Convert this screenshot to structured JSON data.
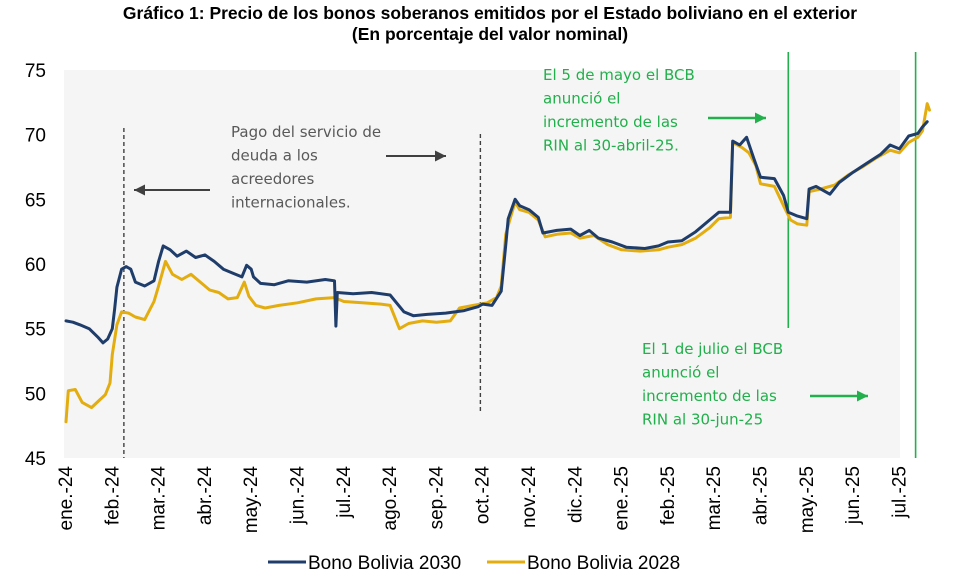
{
  "chart_data": {
    "type": "line",
    "title": "Gráfico 1: Precio de los bonos soberanos emitidos por el Estado boliviano en el exterior",
    "subtitle": "(En porcentaje del valor nominal)",
    "xlabel": "",
    "ylabel": "",
    "ylim": [
      45,
      75
    ],
    "yticks": [
      "45",
      "50",
      "55",
      "60",
      "65",
      "70",
      "75"
    ],
    "categories": [
      "ene.-24",
      "feb.-24",
      "mar.-24",
      "abr.-24",
      "may.-24",
      "jun.-24",
      "jul.-24",
      "ago.-24",
      "sep.-24",
      "oct.-24",
      "nov.-24",
      "dic.-24",
      "ene.-25",
      "feb.-25",
      "mar.-25",
      "abr.-25",
      "may.-25",
      "jun.-25",
      "jul.-25"
    ],
    "grid": false,
    "legend_position": "bottom",
    "series": [
      {
        "name": "Bono Bolivia 2030",
        "color": "#1f3d6b",
        "points": [
          [
            0,
            55.6
          ],
          [
            0.15,
            55.5
          ],
          [
            0.3,
            55.3
          ],
          [
            0.5,
            55.0
          ],
          [
            0.7,
            54.3
          ],
          [
            0.8,
            53.9
          ],
          [
            0.9,
            54.2
          ],
          [
            1.0,
            55.0
          ],
          [
            1.05,
            56.5
          ],
          [
            1.1,
            58.2
          ],
          [
            1.2,
            59.6
          ],
          [
            1.3,
            59.8
          ],
          [
            1.4,
            59.6
          ],
          [
            1.5,
            58.6
          ],
          [
            1.7,
            58.3
          ],
          [
            1.9,
            58.7
          ],
          [
            2.0,
            60.2
          ],
          [
            2.1,
            61.4
          ],
          [
            2.25,
            61.1
          ],
          [
            2.4,
            60.6
          ],
          [
            2.6,
            61.0
          ],
          [
            2.8,
            60.5
          ],
          [
            3.0,
            60.7
          ],
          [
            3.2,
            60.2
          ],
          [
            3.4,
            59.6
          ],
          [
            3.6,
            59.3
          ],
          [
            3.8,
            59.0
          ],
          [
            3.9,
            59.9
          ],
          [
            4.0,
            59.6
          ],
          [
            4.05,
            59.0
          ],
          [
            4.2,
            58.5
          ],
          [
            4.5,
            58.4
          ],
          [
            4.8,
            58.7
          ],
          [
            5.2,
            58.6
          ],
          [
            5.6,
            58.8
          ],
          [
            5.8,
            58.7
          ],
          [
            5.83,
            55.2
          ],
          [
            5.86,
            57.8
          ],
          [
            6.2,
            57.7
          ],
          [
            6.6,
            57.8
          ],
          [
            7.0,
            57.6
          ],
          [
            7.3,
            56.3
          ],
          [
            7.5,
            56.0
          ],
          [
            7.8,
            56.1
          ],
          [
            8.2,
            56.2
          ],
          [
            8.6,
            56.4
          ],
          [
            8.9,
            56.7
          ],
          [
            9.0,
            56.9
          ],
          [
            9.2,
            56.8
          ],
          [
            9.4,
            57.9
          ],
          [
            9.5,
            61.5
          ],
          [
            9.55,
            63.5
          ],
          [
            9.7,
            65.0
          ],
          [
            9.8,
            64.5
          ],
          [
            10.0,
            64.2
          ],
          [
            10.2,
            63.6
          ],
          [
            10.3,
            62.4
          ],
          [
            10.6,
            62.6
          ],
          [
            10.9,
            62.7
          ],
          [
            11.1,
            62.2
          ],
          [
            11.3,
            62.6
          ],
          [
            11.5,
            62.0
          ],
          [
            11.8,
            61.7
          ],
          [
            12.1,
            61.3
          ],
          [
            12.5,
            61.2
          ],
          [
            12.8,
            61.4
          ],
          [
            13.0,
            61.7
          ],
          [
            13.3,
            61.8
          ],
          [
            13.6,
            62.5
          ],
          [
            13.9,
            63.4
          ],
          [
            14.1,
            64.0
          ],
          [
            14.35,
            64.0
          ],
          [
            14.4,
            69.5
          ],
          [
            14.55,
            69.2
          ],
          [
            14.7,
            69.8
          ],
          [
            14.85,
            68.2
          ],
          [
            15.0,
            66.7
          ],
          [
            15.3,
            66.6
          ],
          [
            15.5,
            65.3
          ],
          [
            15.6,
            64.0
          ],
          [
            15.8,
            63.7
          ],
          [
            16.0,
            63.5
          ],
          [
            16.05,
            65.8
          ],
          [
            16.2,
            66.0
          ],
          [
            16.5,
            65.4
          ],
          [
            16.7,
            66.3
          ],
          [
            17.0,
            67.1
          ],
          [
            17.3,
            67.8
          ],
          [
            17.6,
            68.5
          ],
          [
            17.8,
            69.2
          ],
          [
            18.0,
            68.9
          ],
          [
            18.2,
            69.9
          ],
          [
            18.4,
            70.1
          ],
          [
            18.5,
            70.6
          ],
          [
            18.6,
            71.0
          ]
        ]
      },
      {
        "name": "Bono Bolivia 2028",
        "color": "#e3ad10",
        "points": [
          [
            0,
            47.8
          ],
          [
            0.05,
            50.2
          ],
          [
            0.2,
            50.3
          ],
          [
            0.35,
            49.3
          ],
          [
            0.55,
            48.9
          ],
          [
            0.7,
            49.4
          ],
          [
            0.85,
            49.9
          ],
          [
            0.95,
            50.8
          ],
          [
            1.0,
            53.0
          ],
          [
            1.1,
            55.3
          ],
          [
            1.2,
            56.3
          ],
          [
            1.35,
            56.2
          ],
          [
            1.5,
            55.9
          ],
          [
            1.7,
            55.7
          ],
          [
            1.9,
            57.1
          ],
          [
            2.0,
            58.3
          ],
          [
            2.15,
            60.2
          ],
          [
            2.3,
            59.2
          ],
          [
            2.5,
            58.8
          ],
          [
            2.7,
            59.2
          ],
          [
            2.9,
            58.6
          ],
          [
            3.1,
            58.0
          ],
          [
            3.3,
            57.8
          ],
          [
            3.5,
            57.3
          ],
          [
            3.7,
            57.4
          ],
          [
            3.85,
            58.6
          ],
          [
            3.95,
            57.5
          ],
          [
            4.1,
            56.8
          ],
          [
            4.3,
            56.6
          ],
          [
            4.6,
            56.8
          ],
          [
            5.0,
            57.0
          ],
          [
            5.4,
            57.3
          ],
          [
            5.8,
            57.4
          ],
          [
            6.0,
            57.1
          ],
          [
            6.4,
            57.0
          ],
          [
            6.8,
            56.9
          ],
          [
            7.0,
            56.8
          ],
          [
            7.2,
            55.0
          ],
          [
            7.4,
            55.4
          ],
          [
            7.7,
            55.6
          ],
          [
            8.0,
            55.5
          ],
          [
            8.3,
            55.6
          ],
          [
            8.5,
            56.6
          ],
          [
            8.8,
            56.8
          ],
          [
            9.1,
            57.0
          ],
          [
            9.3,
            57.4
          ],
          [
            9.4,
            58.3
          ],
          [
            9.5,
            62.3
          ],
          [
            9.6,
            63.6
          ],
          [
            9.7,
            64.8
          ],
          [
            9.8,
            64.2
          ],
          [
            10.0,
            64.0
          ],
          [
            10.2,
            63.4
          ],
          [
            10.35,
            62.1
          ],
          [
            10.6,
            62.3
          ],
          [
            10.9,
            62.4
          ],
          [
            11.1,
            62.0
          ],
          [
            11.4,
            62.2
          ],
          [
            11.7,
            61.5
          ],
          [
            12.0,
            61.1
          ],
          [
            12.4,
            61.0
          ],
          [
            12.8,
            61.1
          ],
          [
            13.0,
            61.3
          ],
          [
            13.3,
            61.5
          ],
          [
            13.6,
            62.0
          ],
          [
            13.9,
            62.8
          ],
          [
            14.1,
            63.5
          ],
          [
            14.35,
            63.6
          ],
          [
            14.4,
            69.4
          ],
          [
            14.6,
            69.0
          ],
          [
            14.75,
            68.6
          ],
          [
            14.9,
            67.6
          ],
          [
            15.0,
            66.2
          ],
          [
            15.3,
            66.0
          ],
          [
            15.5,
            64.5
          ],
          [
            15.65,
            63.4
          ],
          [
            15.8,
            63.1
          ],
          [
            16.0,
            63.0
          ],
          [
            16.05,
            65.6
          ],
          [
            16.3,
            65.8
          ],
          [
            16.6,
            66.1
          ],
          [
            16.9,
            66.9
          ],
          [
            17.2,
            67.5
          ],
          [
            17.5,
            68.2
          ],
          [
            17.8,
            68.8
          ],
          [
            18.0,
            68.6
          ],
          [
            18.2,
            69.4
          ],
          [
            18.4,
            69.8
          ],
          [
            18.5,
            70.3
          ],
          [
            18.6,
            72.4
          ],
          [
            18.65,
            71.9
          ]
        ]
      }
    ],
    "annotations": [
      {
        "text": [
          "Pago del servicio de",
          "deuda a los",
          "acreedores",
          "internacionales."
        ],
        "color": "#595959"
      },
      {
        "text": [
          "El 5 de mayo el BCB",
          "anunció el",
          "incremento de las",
          "RIN al 30-abril-25."
        ],
        "color": "#21b04b"
      },
      {
        "text": [
          "El 1 de julio el BCB",
          "anunció el",
          "incremento de las",
          "RIN al 30-jun-25"
        ],
        "color": "#21b04b"
      }
    ],
    "reference_lines": [
      {
        "style": "dashed",
        "color": "#404040",
        "x": 1.25
      },
      {
        "style": "dashed",
        "color": "#404040",
        "x": 8.95
      },
      {
        "style": "solid",
        "color": "#21b04b",
        "x": 15.6
      },
      {
        "style": "solid",
        "color": "#21b04b",
        "x": 18.35
      }
    ]
  }
}
